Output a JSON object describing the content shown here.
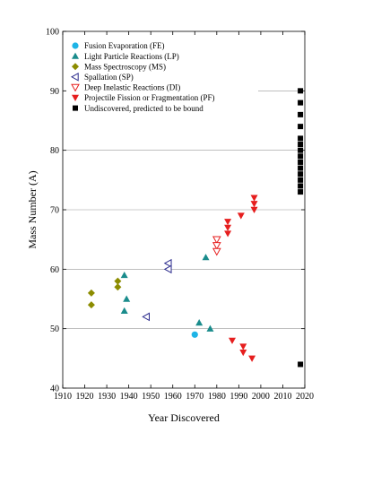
{
  "chart_data": {
    "type": "scatter",
    "xlabel": "Year Discovered",
    "ylabel": "Mass Number (A)",
    "xlim": [
      1910,
      2020
    ],
    "ylim": [
      40,
      100
    ],
    "xticks": [
      1910,
      1920,
      1930,
      1940,
      1950,
      1960,
      1970,
      1980,
      1990,
      2000,
      2010,
      2020
    ],
    "yticks": [
      40,
      50,
      60,
      70,
      80,
      90,
      100
    ],
    "gridlines_y": [
      50,
      60,
      70,
      80,
      90
    ],
    "legend_position": "top-left",
    "series": [
      {
        "name": "Fusion Evaporation (FE)",
        "marker": "circle",
        "color": "#1eb4e6",
        "points": [
          [
            1970,
            49
          ]
        ]
      },
      {
        "name": "Light Particle Reactions (LP)",
        "marker": "triangle-up",
        "color": "#1a8c8c",
        "points": [
          [
            1938,
            59
          ],
          [
            1938,
            53
          ],
          [
            1939,
            55
          ],
          [
            1972,
            51
          ],
          [
            1975,
            62
          ],
          [
            1977,
            50
          ]
        ]
      },
      {
        "name": "Mass Spectroscopy (MS)",
        "marker": "diamond",
        "color": "#8c8c00",
        "points": [
          [
            1923,
            56
          ],
          [
            1923,
            54
          ],
          [
            1935,
            58
          ],
          [
            1935,
            57
          ]
        ]
      },
      {
        "name": "Spallation (SP)",
        "marker": "triangle-left",
        "color": "#2a2a8c",
        "points": [
          [
            1948,
            52
          ],
          [
            1958,
            61
          ],
          [
            1958,
            60
          ]
        ]
      },
      {
        "name": "Deep Inelastic Reactions (DI)",
        "marker": "triangle-down-open",
        "color": "#e61e1e",
        "points": [
          [
            1980,
            65
          ],
          [
            1980,
            64
          ],
          [
            1980,
            63
          ]
        ]
      },
      {
        "name": "Projectile Fission or Fragmentation (PF)",
        "marker": "triangle-down",
        "color": "#e61e1e",
        "points": [
          [
            1985,
            68
          ],
          [
            1985,
            67
          ],
          [
            1985,
            66
          ],
          [
            1987,
            48
          ],
          [
            1991,
            69
          ],
          [
            1992,
            47
          ],
          [
            1992,
            46
          ],
          [
            1996,
            45
          ],
          [
            1997,
            72
          ],
          [
            1997,
            71
          ],
          [
            1997,
            70
          ]
        ]
      },
      {
        "name": "Undiscovered, predicted to be bound",
        "marker": "square",
        "color": "#000000",
        "points": [
          [
            2018,
            44
          ],
          [
            2018,
            73
          ],
          [
            2018,
            74
          ],
          [
            2018,
            75
          ],
          [
            2018,
            76
          ],
          [
            2018,
            77
          ],
          [
            2018,
            78
          ],
          [
            2018,
            79
          ],
          [
            2018,
            80
          ],
          [
            2018,
            81
          ],
          [
            2018,
            82
          ],
          [
            2018,
            84
          ],
          [
            2018,
            86
          ],
          [
            2018,
            88
          ],
          [
            2018,
            90
          ]
        ]
      }
    ]
  }
}
